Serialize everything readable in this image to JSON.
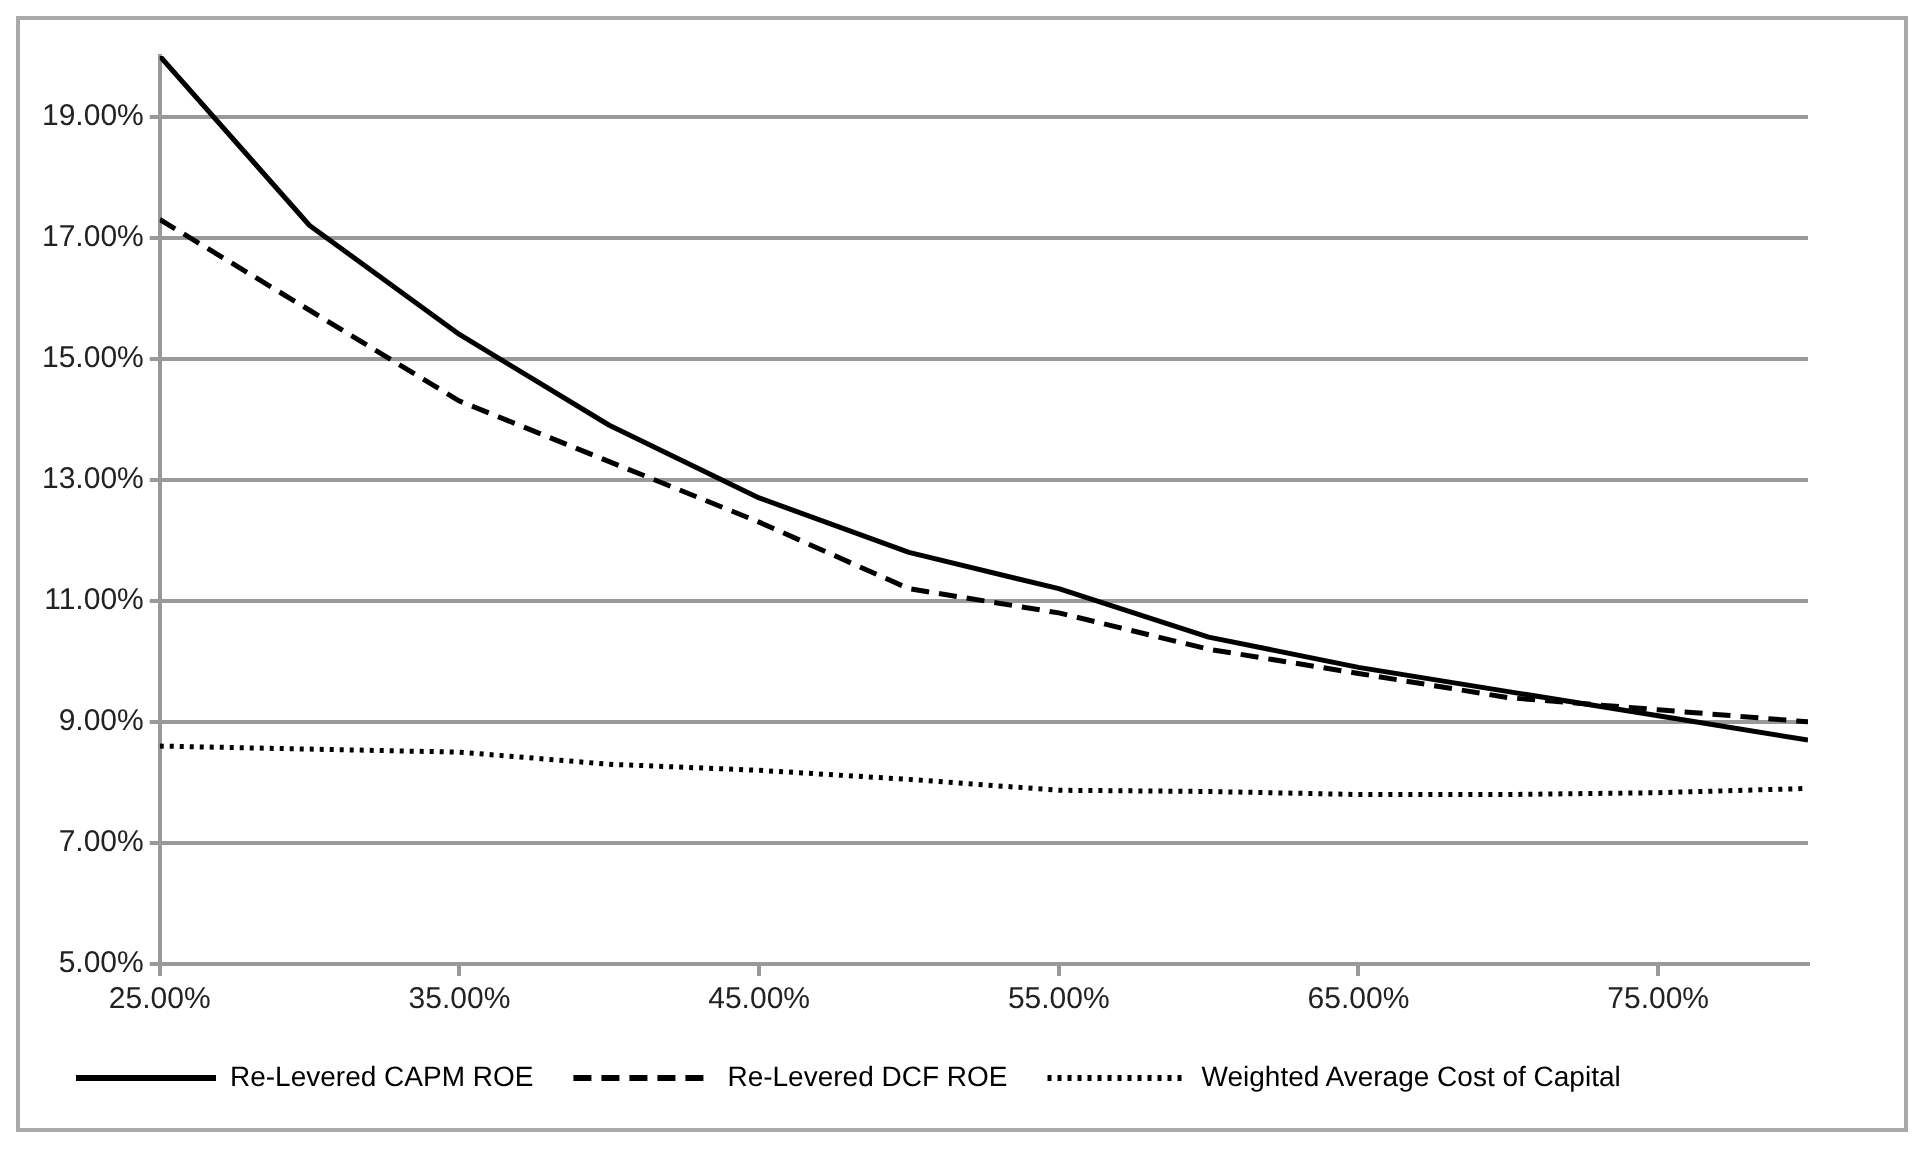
{
  "chart_data": {
    "type": "line",
    "xlim": [
      25,
      80
    ],
    "xticks": [
      {
        "value": 25,
        "label": "25.00%"
      },
      {
        "value": 35,
        "label": "35.00%"
      },
      {
        "value": 45,
        "label": "45.00%"
      },
      {
        "value": 55,
        "label": "55.00%"
      },
      {
        "value": 65,
        "label": "65.00%"
      },
      {
        "value": 75,
        "label": "75.00%"
      }
    ],
    "ylim": [
      5,
      20
    ],
    "yticks": [
      {
        "value": 5,
        "label": "5.00%"
      },
      {
        "value": 7,
        "label": "7.00%"
      },
      {
        "value": 9,
        "label": "9.00%"
      },
      {
        "value": 11,
        "label": "11.00%"
      },
      {
        "value": 13,
        "label": "13.00%"
      },
      {
        "value": 15,
        "label": "15.00%"
      },
      {
        "value": 17,
        "label": "17.00%"
      },
      {
        "value": 19,
        "label": "19.00%"
      }
    ],
    "x": [
      25,
      30,
      35,
      40,
      45,
      50,
      55,
      60,
      65,
      70,
      75,
      80
    ],
    "series": [
      {
        "name": "Re-Levered CAPM ROE",
        "color": "#000000",
        "line_style": "solid",
        "values": [
          20,
          17.2,
          15.4,
          13.9,
          12.7,
          11.8,
          11.2,
          10.4,
          9.9,
          9.5,
          9.1,
          8.7
        ]
      },
      {
        "name": "Re-Levered DCF ROE",
        "color": "#000000",
        "line_style": "dashed",
        "values": [
          17.3,
          15.8,
          14.3,
          13.3,
          12.3,
          11.2,
          10.8,
          10.2,
          9.8,
          9.4,
          9.2,
          9.0
        ]
      },
      {
        "name": "Weighted Average Cost of Capital",
        "color": "#000000",
        "line_style": "dotted",
        "values": [
          8.6,
          8.55,
          8.5,
          8.3,
          8.2,
          8.05,
          7.87,
          7.85,
          7.8,
          7.8,
          7.83,
          7.9
        ]
      }
    ],
    "grid": "y",
    "legend": "bottom",
    "marker": "none"
  }
}
